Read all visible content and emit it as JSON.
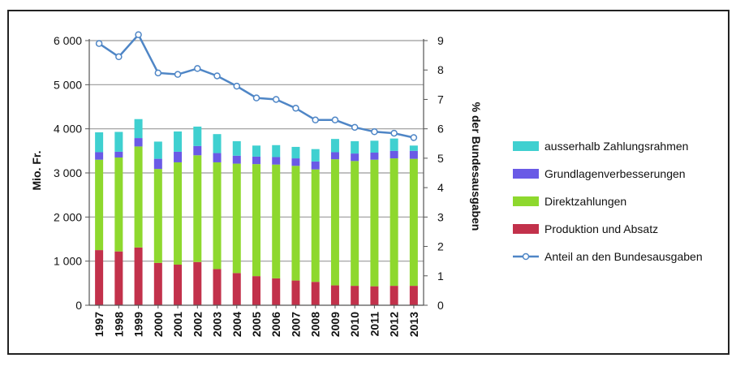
{
  "chart_data": {
    "type": "bar",
    "stacked": true,
    "categories": [
      "1997",
      "1998",
      "1999",
      "2000",
      "2001",
      "2002",
      "2003",
      "2004",
      "2005",
      "2006",
      "2007",
      "2008",
      "2009",
      "2010",
      "2011",
      "2012",
      "2013"
    ],
    "ylabel_left": "Mio. Fr.",
    "ylabel_right": "% der Bundesausgaben",
    "ylim_left": [
      0,
      6000
    ],
    "ylim_right": [
      0,
      9
    ],
    "yticks_left": [
      "0",
      "1 000",
      "2 000",
      "3 000",
      "4 000",
      "5 000",
      "6 000"
    ],
    "yticks_right": [
      "0",
      "1",
      "2",
      "3",
      "4",
      "5",
      "6",
      "7",
      "8",
      "9"
    ],
    "grid": true,
    "legend_position": "right",
    "series": [
      {
        "name": "Produktion und Absatz",
        "color": "#c2314b",
        "values": [
          1250,
          1220,
          1310,
          960,
          920,
          980,
          820,
          730,
          660,
          610,
          560,
          530,
          450,
          440,
          430,
          440,
          440
        ]
      },
      {
        "name": "Direktzahlungen",
        "color": "#8ed82e",
        "values": [
          2050,
          2130,
          2290,
          2130,
          2320,
          2420,
          2420,
          2480,
          2540,
          2580,
          2600,
          2550,
          2860,
          2830,
          2870,
          2890,
          2880
        ]
      },
      {
        "name": "Grundlagenverbesserungen",
        "color": "#6a5ae6",
        "values": [
          170,
          130,
          190,
          230,
          240,
          210,
          210,
          180,
          170,
          170,
          170,
          180,
          160,
          170,
          160,
          170,
          180
        ]
      },
      {
        "name": "ausserhalb Zahlungsrahmen",
        "color": "#3fd0d0",
        "values": [
          450,
          450,
          430,
          390,
          460,
          440,
          430,
          330,
          250,
          270,
          260,
          280,
          300,
          280,
          270,
          280,
          120
        ]
      }
    ],
    "line_series": [
      {
        "name": "Anteil an den Bundesausgaben",
        "color": "#4f86c6",
        "axis": "right",
        "values": [
          8.9,
          8.45,
          9.2,
          7.9,
          7.85,
          8.05,
          7.8,
          7.45,
          7.05,
          7.0,
          6.7,
          6.3,
          6.3,
          6.05,
          5.9,
          5.85,
          5.7
        ]
      }
    ],
    "legend_order": [
      "ausserhalb Zahlungsrahmen",
      "Grundlagenverbesserungen",
      "Direktzahlungen",
      "Produktion und Absatz",
      "Anteil an den Bundesausgaben"
    ]
  }
}
